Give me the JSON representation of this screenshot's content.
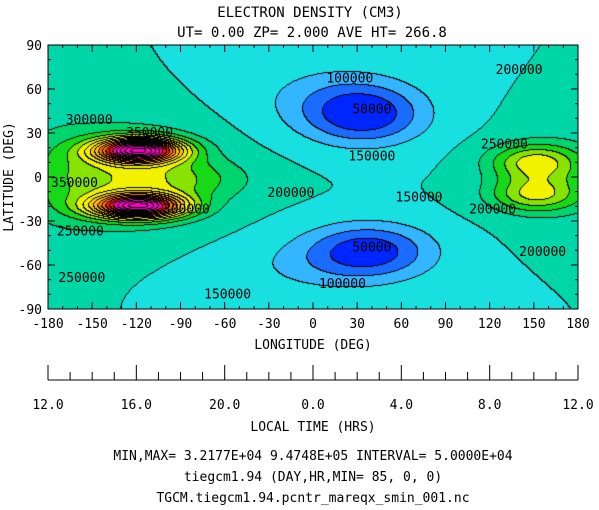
{
  "title": "ELECTRON DENSITY (CM3)",
  "subtitle": "UT= 0.00 ZP=  2.000 AVE HT= 266.8",
  "footer": {
    "minmax": "MIN,MAX=  3.2177E+04  9.4748E+05 INTERVAL=  5.0000E+04",
    "model": "tiegcm1.94 (DAY,HR,MIN= 85, 0, 0)",
    "file": "TGCM.tiegcm1.94.pcntr_mareqx_smin_001.nc"
  },
  "colors": {
    "background": "#ffffff",
    "contour_line": "#000000",
    "fill_scale": [
      "#0026ff",
      "#1a6cff",
      "#33b5ff",
      "#18e0e0",
      "#00d6a8",
      "#00d46e",
      "#18d918",
      "#88e300",
      "#f2f200",
      "#ffc400",
      "#ff7a00",
      "#f01616",
      "#ff00c8"
    ]
  },
  "chart_data": {
    "type": "heatmap",
    "subtype": "filled-contour",
    "title": "ELECTRON DENSITY (CM3)",
    "subtitle": "UT= 0.00 ZP=  2.000 AVE HT= 266.8",
    "xlabel": "LONGITUDE (DEG)",
    "ylabel": "LATITUDE (DEG)",
    "xlim": [
      -180,
      180
    ],
    "ylim": [
      -90,
      90
    ],
    "xticks": [
      -180,
      -150,
      -120,
      -90,
      -60,
      -30,
      0,
      30,
      60,
      90,
      120,
      150,
      180
    ],
    "yticks": [
      -90,
      -60,
      -30,
      0,
      30,
      60,
      90
    ],
    "xtick_labels": [
      "-180",
      "-150",
      "-120",
      "-90",
      "-60",
      "-30",
      "0",
      "30",
      "60",
      "90",
      "120",
      "150",
      "180"
    ],
    "ytick_labels": [
      "-90",
      "-60",
      "-30",
      "0",
      "30",
      "60",
      "90"
    ],
    "secondary_x_axis": {
      "label": "LOCAL TIME (HRS)",
      "tick_labels": [
        "12.0",
        "16.0",
        "20.0",
        "0.0",
        "4.0",
        "8.0",
        "12.0"
      ],
      "tick_longitudes": [
        -180,
        -120,
        -60,
        0,
        60,
        120,
        180
      ]
    },
    "min": 32177,
    "max": 947480,
    "interval": 50000,
    "levels": [
      50000,
      100000,
      150000,
      200000,
      250000,
      300000,
      350000,
      400000,
      450000,
      500000,
      550000,
      600000,
      650000,
      700000,
      750000,
      800000,
      850000,
      900000
    ],
    "contour_labels": [
      {
        "text": "100000",
        "lon": 25,
        "lat": 67
      },
      {
        "text": "50000",
        "lon": 40,
        "lat": 46
      },
      {
        "text": "150000",
        "lon": 40,
        "lat": 14
      },
      {
        "text": "200000",
        "lon": 140,
        "lat": 73
      },
      {
        "text": "300000",
        "lon": -152,
        "lat": 39
      },
      {
        "text": "350000",
        "lon": -111,
        "lat": 30
      },
      {
        "text": "250000",
        "lon": 130,
        "lat": 22
      },
      {
        "text": "350000",
        "lon": -162,
        "lat": -4
      },
      {
        "text": "300000",
        "lon": -86,
        "lat": -22
      },
      {
        "text": "200000",
        "lon": -15,
        "lat": -11
      },
      {
        "text": "150000",
        "lon": 72,
        "lat": -14
      },
      {
        "text": "200000",
        "lon": 122,
        "lat": -22
      },
      {
        "text": "250000",
        "lon": -158,
        "lat": -37
      },
      {
        "text": "50000",
        "lon": 40,
        "lat": -48
      },
      {
        "text": "200000",
        "lon": 156,
        "lat": -51
      },
      {
        "text": "250000",
        "lon": -157,
        "lat": -69
      },
      {
        "text": "100000",
        "lon": 20,
        "lat": -73
      },
      {
        "text": "150000",
        "lon": -58,
        "lat": -80
      }
    ],
    "features": [
      {
        "kind": "trough",
        "lon": 40,
        "lat": 40,
        "value": 32177
      },
      {
        "kind": "trough",
        "lon": 40,
        "lat": -50,
        "value": 35000
      },
      {
        "kind": "peak",
        "lon": -118,
        "lat": 18,
        "value": 947480
      },
      {
        "kind": "peak",
        "lon": -118,
        "lat": -20,
        "value": 900000
      },
      {
        "kind": "ridge",
        "lon": 150,
        "lat": 10,
        "value": 470000
      },
      {
        "kind": "ridge",
        "lon": 150,
        "lat": -12,
        "value": 440000
      }
    ]
  }
}
